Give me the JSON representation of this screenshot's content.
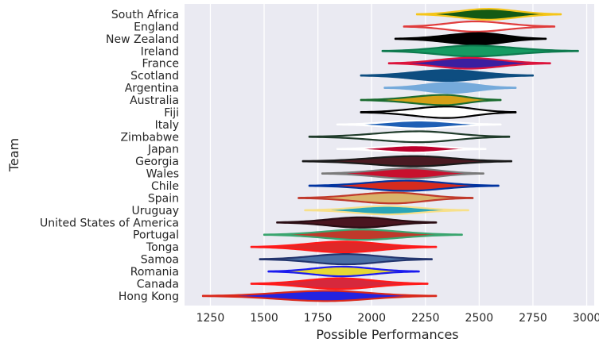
{
  "chart_data": {
    "type": "violin",
    "title": "",
    "xlabel": "Possible Performances",
    "ylabel": "Team",
    "xlim": [
      1130,
      3035
    ],
    "xticks": [
      1250,
      1500,
      1750,
      2000,
      2250,
      2500,
      2750,
      3000
    ],
    "grid": "vertical",
    "teams": [
      {
        "name": "South Africa",
        "min": 2210,
        "max": 2880,
        "center": 2540,
        "spread": 0.9,
        "fill": "#145a14",
        "edge": "#f5c518"
      },
      {
        "name": "England",
        "min": 2150,
        "max": 2850,
        "center": 2480,
        "spread": 0.85,
        "fill": "#ffffff",
        "edge": "#e03c3c"
      },
      {
        "name": "New Zealand",
        "min": 2110,
        "max": 2810,
        "center": 2500,
        "spread": 0.95,
        "fill": "#000000",
        "edge": "#000000"
      },
      {
        "name": "Ireland",
        "min": 2050,
        "max": 2960,
        "center": 2470,
        "spread": 0.9,
        "fill": "#169b62",
        "edge": "#0e7a4e"
      },
      {
        "name": "France",
        "min": 2080,
        "max": 2830,
        "center": 2450,
        "spread": 0.9,
        "fill": "#3b1fa0",
        "edge": "#dc143c"
      },
      {
        "name": "Scotland",
        "min": 1950,
        "max": 2750,
        "center": 2350,
        "spread": 0.9,
        "fill": "#0d4d80",
        "edge": "#0d4d80"
      },
      {
        "name": "Argentina",
        "min": 2060,
        "max": 2670,
        "center": 2370,
        "spread": 0.85,
        "fill": "#75aadb",
        "edge": "#75aadb"
      },
      {
        "name": "Australia",
        "min": 1950,
        "max": 2600,
        "center": 2340,
        "spread": 0.85,
        "fill": "#d4a017",
        "edge": "#1a6b2f"
      },
      {
        "name": "Fiji",
        "min": 1950,
        "max": 2670,
        "center": 2350,
        "spread": 0.95,
        "fill": "#ffffff",
        "edge": "#000000"
      },
      {
        "name": "Italy",
        "min": 1840,
        "max": 2600,
        "center": 2220,
        "spread": 0.65,
        "fill": "#1e5fb5",
        "edge": "#ffffff"
      },
      {
        "name": "Zimbabwe",
        "min": 1710,
        "max": 2640,
        "center": 2220,
        "spread": 0.9,
        "fill": "#ffffff",
        "edge": "#1f3b2a"
      },
      {
        "name": "Japan",
        "min": 1840,
        "max": 2530,
        "center": 2200,
        "spread": 0.6,
        "fill": "#bc002d",
        "edge": "#ffffff"
      },
      {
        "name": "Georgia",
        "min": 1680,
        "max": 2650,
        "center": 2200,
        "spread": 0.85,
        "fill": "#4a1a22",
        "edge": "#1a1a1a"
      },
      {
        "name": "Wales",
        "min": 1770,
        "max": 2520,
        "center": 2180,
        "spread": 0.85,
        "fill": "#c8102e",
        "edge": "#7a7a7a"
      },
      {
        "name": "Chile",
        "min": 1710,
        "max": 2590,
        "center": 2160,
        "spread": 0.85,
        "fill": "#d52b1e",
        "edge": "#0033a0"
      },
      {
        "name": "Spain",
        "min": 1660,
        "max": 2470,
        "center": 2100,
        "spread": 0.9,
        "fill": "#d9b36a",
        "edge": "#c0392b"
      },
      {
        "name": "Uruguay",
        "min": 1690,
        "max": 2450,
        "center": 2070,
        "spread": 0.7,
        "fill": "#2aa6b8",
        "edge": "#f7e08a"
      },
      {
        "name": "United States of America",
        "min": 1560,
        "max": 2300,
        "center": 1950,
        "spread": 0.85,
        "fill": "#4a1520",
        "edge": "#2a0d14"
      },
      {
        "name": "Portugal",
        "min": 1500,
        "max": 2420,
        "center": 1950,
        "spread": 0.85,
        "fill": "#c0392b",
        "edge": "#3aa56f"
      },
      {
        "name": "Tonga",
        "min": 1440,
        "max": 2300,
        "center": 1870,
        "spread": 0.9,
        "fill": "#e02828",
        "edge": "#ff1a1a"
      },
      {
        "name": "Samoa",
        "min": 1480,
        "max": 2280,
        "center": 1880,
        "spread": 0.85,
        "fill": "#4a6fa5",
        "edge": "#23356e"
      },
      {
        "name": "Romania",
        "min": 1520,
        "max": 2220,
        "center": 1860,
        "spread": 0.8,
        "fill": "#e6d833",
        "edge": "#1a1aee"
      },
      {
        "name": "Canada",
        "min": 1440,
        "max": 2260,
        "center": 1850,
        "spread": 0.9,
        "fill": "#d6283c",
        "edge": "#ff1a1a"
      },
      {
        "name": "Hong Kong",
        "min": 1215,
        "max": 2300,
        "center": 1790,
        "spread": 0.85,
        "fill": "#2323e0",
        "edge": "#d9281b"
      }
    ]
  }
}
